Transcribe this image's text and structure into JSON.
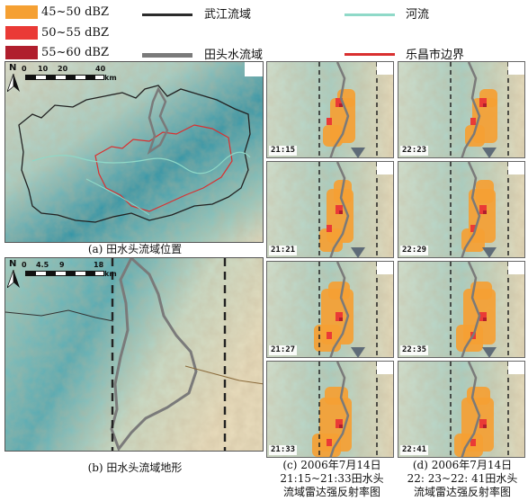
{
  "legend": {
    "reflectivity": [
      {
        "label": "45~50 dBZ",
        "color": "#f5a033"
      },
      {
        "label": "50~55 dBZ",
        "color": "#ea3a36"
      },
      {
        "label": "55~60 dBZ",
        "color": "#b01e2d"
      }
    ],
    "lines": [
      {
        "label": "武江流域",
        "color": "#2b2b2b"
      },
      {
        "label": "田头水流域",
        "color": "#7a7a7a"
      },
      {
        "label": "河流",
        "color": "#8fd9c8"
      },
      {
        "label": "乐昌市边界",
        "color": "#d93030"
      }
    ]
  },
  "map_a": {
    "north": "N",
    "scale_ticks": [
      "0",
      "10",
      "20",
      "40"
    ],
    "scale_unit": "km",
    "caption": "(a) 田水头流域位置"
  },
  "map_b": {
    "north": "N",
    "scale_ticks": [
      "0",
      "4.5",
      "9",
      "18"
    ],
    "scale_unit": "km",
    "caption": "(b) 田水头流域地形"
  },
  "col_c": {
    "times": [
      "21:15",
      "21:21",
      "21:27",
      "21:33"
    ],
    "caption_line1": "(c) 2006年7月14日",
    "caption_line2": "21:15~21:33田水头",
    "caption_line3": "流域雷达强反射率图"
  },
  "col_d": {
    "times": [
      "22:23",
      "22:29",
      "22:35",
      "22:41"
    ],
    "caption_line1": "(d) 2006年7月14日",
    "caption_line2": "22: 23~22: 41田水头",
    "caption_line3": "流域雷达强反射率图"
  }
}
